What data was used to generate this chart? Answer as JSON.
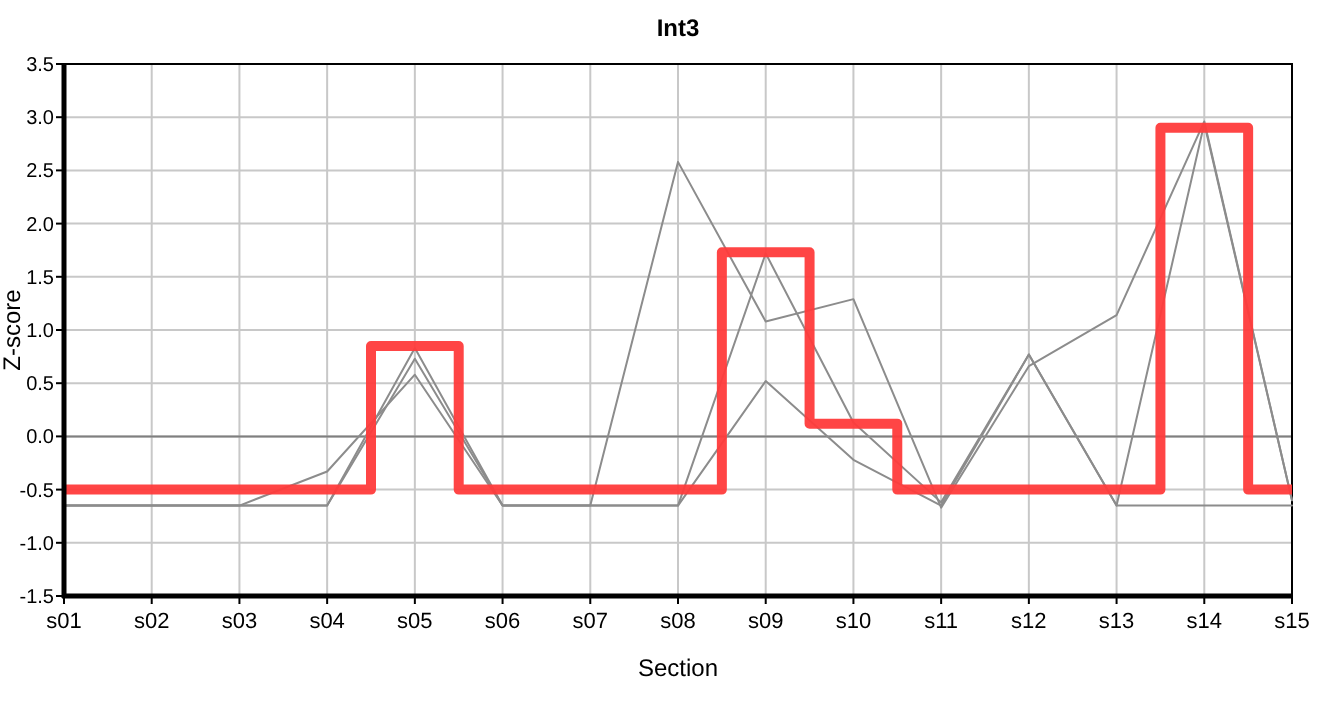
{
  "chart_data": {
    "type": "line",
    "title": "Int3",
    "xlabel": "Section",
    "ylabel": "Z-score",
    "categories": [
      "s01",
      "s02",
      "s03",
      "s04",
      "s05",
      "s06",
      "s07",
      "s08",
      "s09",
      "s10",
      "s11",
      "s12",
      "s13",
      "s14",
      "s15"
    ],
    "ylim": [
      -1.5,
      3.5
    ],
    "yticks": [
      -1.5,
      {
        "value": -1,
        "label": "-1.0"
      },
      -0.5,
      {
        "value": 0,
        "label": "0.0"
      },
      0.5,
      {
        "value": 1,
        "label": "1.0"
      },
      1.5,
      {
        "value": 2,
        "label": "2.0"
      },
      2.5,
      {
        "value": 3,
        "label": "3.0"
      },
      3.5
    ],
    "grid": true,
    "marker": "none",
    "line_style": "solid",
    "ref_lines": [
      {
        "axis": "y",
        "value": 0,
        "color": "#7f7f7f"
      }
    ],
    "series": [
      {
        "color": "#8c8c8c",
        "values": [
          -0.65,
          -0.65,
          -0.65,
          -0.33,
          0.58,
          -0.65,
          -0.65,
          2.58,
          1.08,
          1.29,
          -0.67,
          0.66,
          1.14,
          2.96,
          -0.6
        ]
      },
      {
        "color": "#8c8c8c",
        "values": [
          -0.65,
          -0.65,
          -0.65,
          -0.65,
          0.83,
          -0.65,
          -0.65,
          -0.65,
          1.72,
          0.13,
          -0.62,
          0.77,
          -0.65,
          2.94,
          -0.6
        ]
      },
      {
        "color": "#8c8c8c",
        "values": [
          -0.65,
          -0.65,
          -0.65,
          -0.65,
          0.73,
          -0.65,
          -0.65,
          -0.65,
          0.52,
          -0.22,
          -0.65,
          0.77,
          -0.65,
          -0.65,
          -0.65
        ]
      },
      {
        "type": "step",
        "color": "#ff3b3b",
        "values": [
          -0.5,
          -0.5,
          -0.5,
          -0.5,
          0.85,
          -0.5,
          -0.5,
          -0.5,
          1.73,
          0.12,
          -0.5,
          -0.5,
          -0.5,
          2.9,
          -0.5
        ]
      }
    ]
  }
}
